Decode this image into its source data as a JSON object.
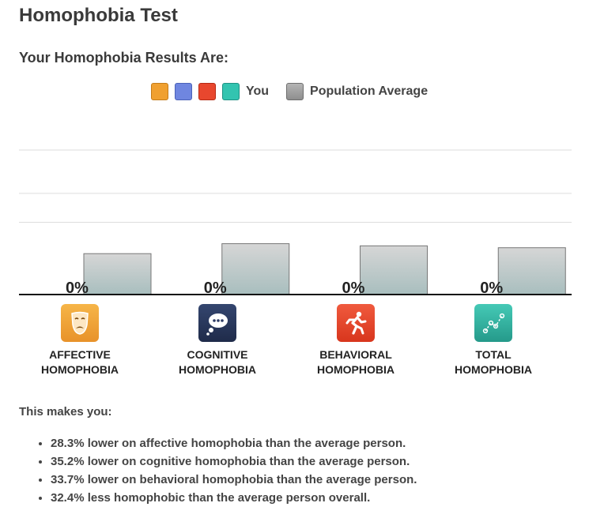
{
  "page": {
    "title": "Homophobia Test",
    "results_heading": "Your Homophobia Results Are:"
  },
  "legend": {
    "you_label": "You",
    "population_label": "Population Average",
    "you_colors": [
      "#f0a030",
      "#6f86e0",
      "#e8472e",
      "#33c4b0"
    ],
    "population_color": "#9a9a9a"
  },
  "chart_data": {
    "type": "bar",
    "categories": [
      "AFFECTIVE HOMOPHOBIA",
      "COGNITIVE HOMOPHOBIA",
      "BEHAVIORAL HOMOPHOBIA",
      "TOTAL HOMOPHOBIA"
    ],
    "series": [
      {
        "name": "You",
        "values": [
          0,
          0,
          0,
          0
        ],
        "labels": [
          "0%",
          "0%",
          "0%",
          "0%"
        ]
      },
      {
        "name": "Population Average",
        "values": [
          28.3,
          35.2,
          33.7,
          32.4
        ]
      }
    ],
    "ylim": [
      0,
      100
    ],
    "grid": true
  },
  "categories": [
    {
      "line1": "AFFECTIVE",
      "line2": "HOMOPHOBIA",
      "icon": "theater-mask-icon",
      "color": "#f0a030"
    },
    {
      "line1": "COGNITIVE",
      "line2": "HOMOPHOBIA",
      "icon": "thought-bubble-icon",
      "color": "#2b3a63"
    },
    {
      "line1": "BEHAVIORAL",
      "line2": "HOMOPHOBIA",
      "icon": "running-person-icon",
      "color": "#e8472e"
    },
    {
      "line1": "TOTAL",
      "line2": "HOMOPHOBIA",
      "icon": "line-chart-icon",
      "color": "#33b8a6"
    }
  ],
  "summary": {
    "intro": "This makes you:",
    "items": [
      "28.3% lower on affective homophobia than the average person.",
      "35.2% lower on cognitive homophobia than the average person.",
      "33.7% lower on behavioral homophobia than the average person.",
      "32.4% less homophobic than the average person overall."
    ]
  }
}
